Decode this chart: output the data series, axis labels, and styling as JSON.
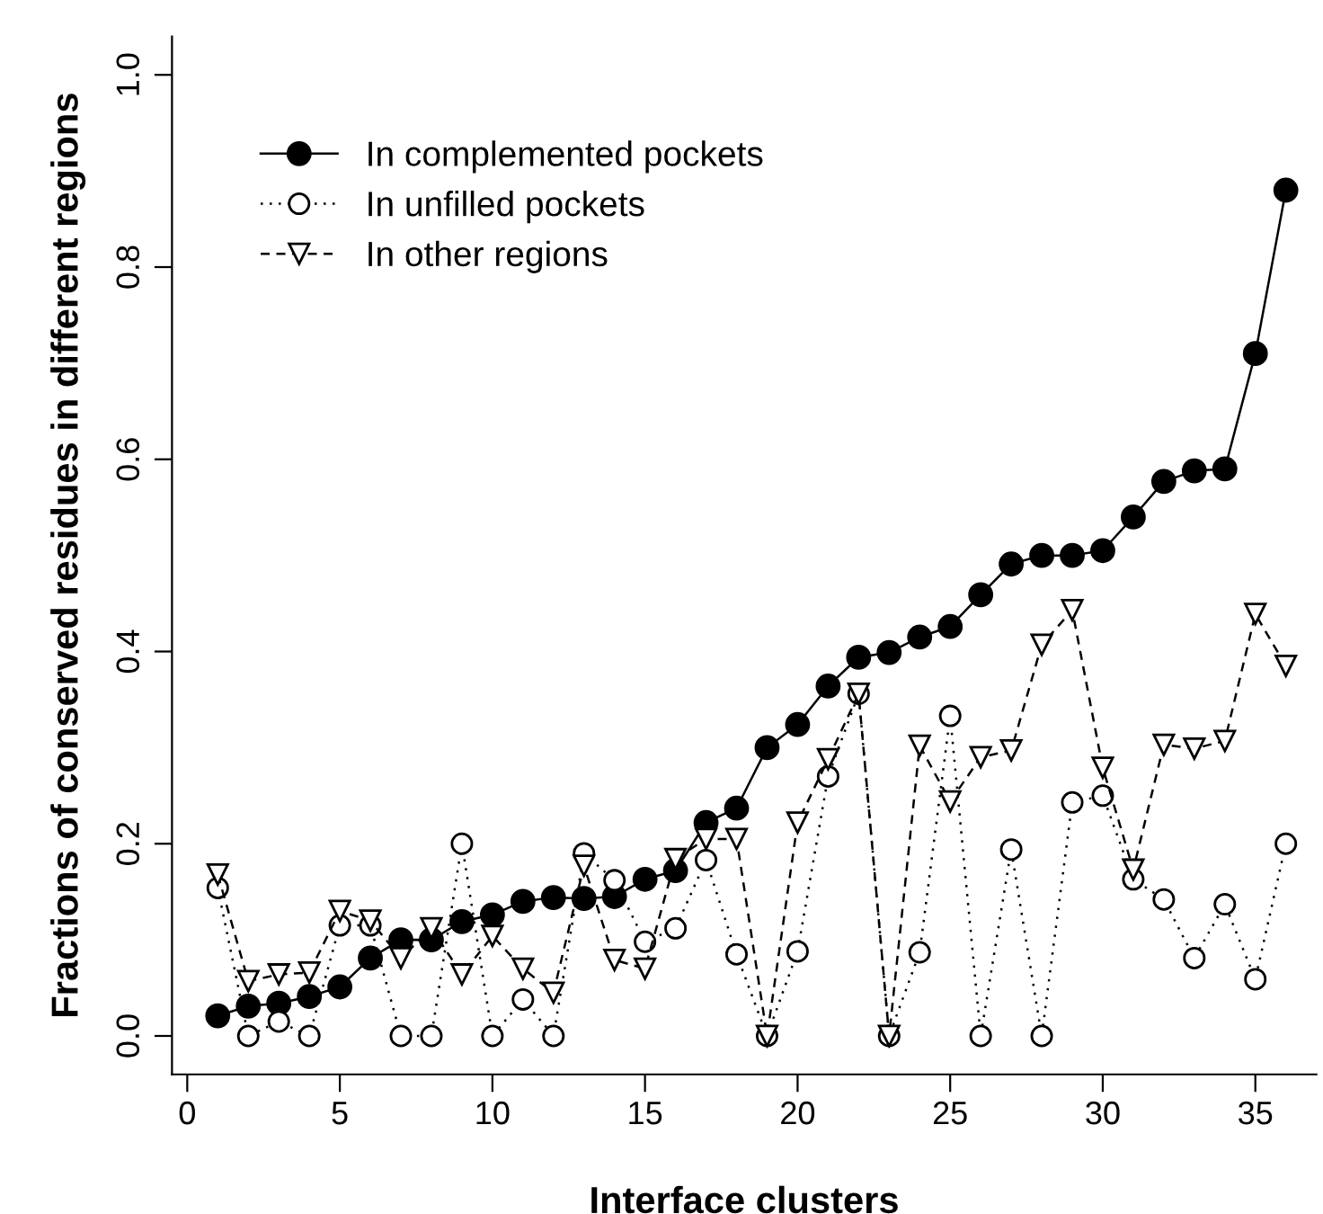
{
  "chart_data": {
    "type": "line",
    "xlabel": "Interface clusters",
    "ylabel": "Fractions of conserved residues in different regions",
    "x": [
      1,
      2,
      3,
      4,
      5,
      6,
      7,
      8,
      9,
      10,
      11,
      12,
      13,
      14,
      15,
      16,
      17,
      18,
      19,
      20,
      21,
      22,
      23,
      24,
      25,
      26,
      27,
      28,
      29,
      30,
      31,
      32,
      33,
      34,
      35,
      36
    ],
    "series": [
      {
        "name": "In complemented pockets",
        "color": "#000000",
        "marker": "circle",
        "line_style": "solid",
        "values": [
          0.021,
          0.031,
          0.034,
          0.041,
          0.051,
          0.081,
          0.1,
          0.1,
          0.119,
          0.126,
          0.14,
          0.144,
          0.143,
          0.145,
          0.163,
          0.172,
          0.222,
          0.237,
          0.3,
          0.324,
          0.364,
          0.394,
          0.399,
          0.415,
          0.426,
          0.459,
          0.491,
          0.5,
          0.5,
          0.505,
          0.54,
          0.577,
          0.588,
          0.59,
          0.71,
          0.88
        ]
      },
      {
        "name": "In unfilled pockets",
        "color": "#000000",
        "marker": "circle",
        "line_style": "dotted",
        "values": [
          0.154,
          0.0,
          0.015,
          0.0,
          0.115,
          0.115,
          0.0,
          0.0,
          0.2,
          0.0,
          0.038,
          0.0,
          0.19,
          0.162,
          0.098,
          0.112,
          0.183,
          0.085,
          0.0,
          0.088,
          0.27,
          0.356,
          0.0,
          0.087,
          0.333,
          0.0,
          0.194,
          0.0,
          0.243,
          0.25,
          0.163,
          0.142,
          0.081,
          0.137,
          0.059,
          0.2
        ]
      },
      {
        "name": "In other regions",
        "color": "#000000",
        "marker": "triangle",
        "line_style": "dashed",
        "values": [
          0.168,
          0.057,
          0.064,
          0.066,
          0.13,
          0.12,
          0.081,
          0.112,
          0.064,
          0.104,
          0.07,
          0.045,
          0.177,
          0.079,
          0.07,
          0.184,
          0.205,
          0.205,
          0.0,
          0.222,
          0.288,
          0.356,
          0.0,
          0.302,
          0.244,
          0.29,
          0.297,
          0.407,
          0.443,
          0.279,
          0.173,
          0.303,
          0.299,
          0.307,
          0.439,
          0.385
        ]
      }
    ],
    "xlim": [
      -0.5,
      37
    ],
    "xticks": [
      0,
      5,
      10,
      15,
      20,
      25,
      30,
      35
    ],
    "ylim": [
      -0.04,
      1.04
    ],
    "yticks": [
      {
        "value": 0,
        "label": "0.0"
      },
      {
        "value": 0.2,
        "label": "0.2"
      },
      {
        "value": 0.4,
        "label": "0.4"
      },
      {
        "value": 0.6,
        "label": "0.6"
      },
      {
        "value": 0.8,
        "label": "0.8"
      },
      {
        "value": 1,
        "label": "1.0"
      }
    ],
    "grid": false,
    "legend": "top left"
  }
}
